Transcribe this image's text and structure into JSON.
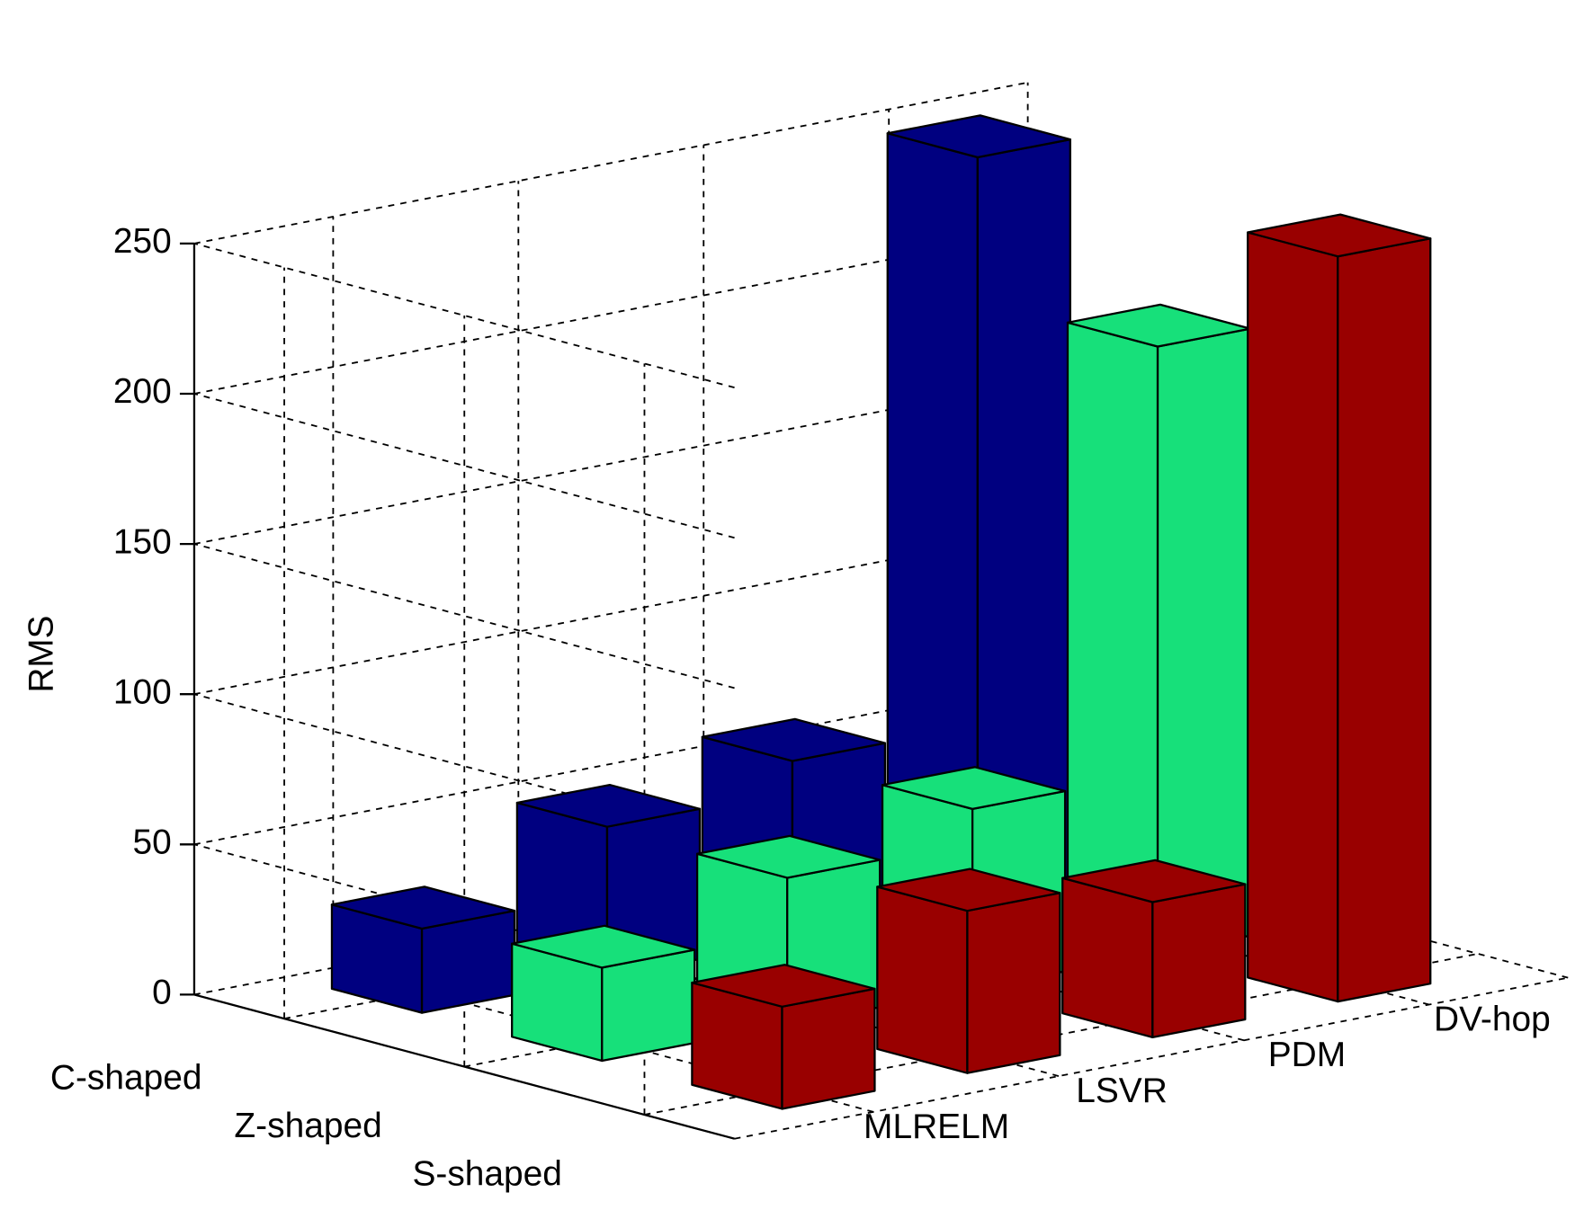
{
  "chart_data": {
    "type": "bar3d",
    "y_label": "RMS",
    "categories": [
      "MLRELM",
      "LSVR",
      "PDM",
      "DV-hop"
    ],
    "series": [
      {
        "name": "C-shaped",
        "color": "#000080",
        "values": [
          28,
          50,
          60,
          249
        ]
      },
      {
        "name": "Z-shaped",
        "color": "#17e07a",
        "values": [
          31,
          49,
          60,
          202
        ]
      },
      {
        "name": "S-shaped",
        "color": "#990000",
        "values": [
          34,
          54,
          45,
          248
        ]
      }
    ],
    "ylim": [
      0,
      250
    ],
    "yticks": [
      0,
      50,
      100,
      150,
      200,
      250
    ],
    "grid": true
  }
}
